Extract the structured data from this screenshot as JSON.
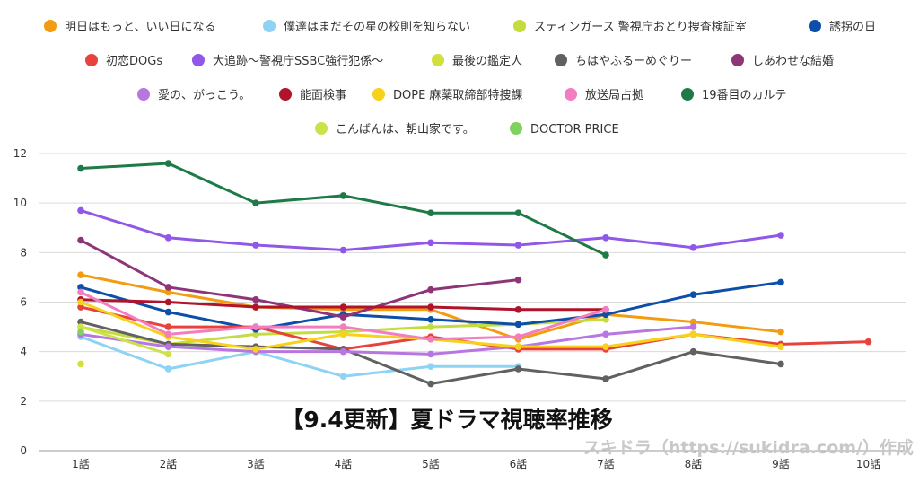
{
  "chart_data": {
    "type": "line",
    "title": "【9.4更新】夏ドラマ視聴率推移",
    "watermark": "スキドラ（https://sukidra.com/）作成",
    "categories": [
      "1話",
      "2話",
      "3話",
      "4話",
      "5話",
      "6話",
      "7話",
      "8話",
      "9話",
      "10話"
    ],
    "ylim": [
      0,
      12
    ],
    "yticks": [
      0,
      2,
      4,
      6,
      8,
      10,
      12
    ],
    "grid": true,
    "legend_position": "top",
    "series": [
      {
        "name": "明日はもっと、いい日になる",
        "color": "#f39c12",
        "values": [
          7.1,
          6.4,
          5.8,
          5.7,
          5.7,
          4.5,
          5.5,
          5.2,
          4.8,
          null
        ]
      },
      {
        "name": "僕達はまだその星の校則を知らない",
        "color": "#8fd3f4",
        "values": [
          4.6,
          3.3,
          4.0,
          3.0,
          3.4,
          3.4,
          null,
          null,
          null,
          null
        ]
      },
      {
        "name": "スティンガース 警視庁おとり捜査検証室",
        "color": "#c5dc3e",
        "values": [
          5.0,
          4.3,
          4.7,
          4.8,
          5.0,
          5.1,
          5.3,
          null,
          null,
          null
        ]
      },
      {
        "name": "誘拐の日",
        "color": "#0d4fa8",
        "values": [
          6.6,
          5.6,
          4.9,
          5.5,
          5.3,
          5.1,
          5.5,
          6.3,
          6.8,
          null
        ]
      },
      {
        "name": "初恋DOGs",
        "color": "#e8423c",
        "values": [
          5.8,
          5.0,
          5.0,
          4.1,
          4.6,
          4.1,
          4.1,
          4.7,
          4.3,
          4.4
        ]
      },
      {
        "name": "大追跡〜警視庁SSBC強行犯係〜",
        "color": "#9057e8",
        "values": [
          9.7,
          8.6,
          8.3,
          8.1,
          8.4,
          8.3,
          8.6,
          8.2,
          8.7,
          null
        ]
      },
      {
        "name": "最後の鑑定人",
        "color": "#d2e03c",
        "values": [
          3.5,
          null,
          null,
          null,
          null,
          null,
          null,
          null,
          null,
          null
        ]
      },
      {
        "name": "ちはやふるーめぐりー",
        "color": "#616161",
        "values": [
          5.2,
          4.3,
          4.2,
          4.1,
          2.7,
          3.3,
          2.9,
          4.0,
          3.5,
          null
        ]
      },
      {
        "name": "しあわせな結婚",
        "color": "#8e3478",
        "values": [
          8.5,
          6.6,
          6.1,
          5.4,
          6.5,
          6.9,
          null,
          null,
          null,
          null
        ]
      },
      {
        "name": "愛の、がっこう。",
        "color": "#b876e0",
        "values": [
          4.7,
          4.2,
          4.0,
          4.0,
          3.9,
          4.2,
          4.7,
          5.0,
          null,
          null
        ]
      },
      {
        "name": "能面検事",
        "color": "#b0132a",
        "values": [
          6.1,
          6.0,
          5.8,
          5.8,
          5.8,
          5.7,
          5.7,
          null,
          null,
          null
        ]
      },
      {
        "name": "DOPE 麻薬取締部特捜課",
        "color": "#f7d11b",
        "values": [
          6.0,
          4.6,
          4.1,
          4.7,
          4.5,
          4.2,
          4.2,
          4.7,
          4.2,
          null
        ]
      },
      {
        "name": "放送局占拠",
        "color": "#f27ec0",
        "values": [
          6.4,
          4.7,
          5.0,
          5.0,
          4.5,
          4.6,
          5.7,
          null,
          null,
          null
        ]
      },
      {
        "name": "19番目のカルテ",
        "color": "#1e7a47",
        "values": [
          11.4,
          11.6,
          10.0,
          10.3,
          9.6,
          9.6,
          7.9,
          null,
          null,
          null
        ]
      },
      {
        "name": "こんばんは、朝山家です。",
        "color": "#cde248",
        "values": [
          5.0,
          3.9,
          null,
          null,
          null,
          null,
          null,
          null,
          null,
          null
        ]
      },
      {
        "name": "DOCTOR PRICE",
        "color": "#7fd25e",
        "values": [
          4.8,
          null,
          null,
          null,
          null,
          null,
          null,
          null,
          null,
          null
        ]
      }
    ]
  }
}
